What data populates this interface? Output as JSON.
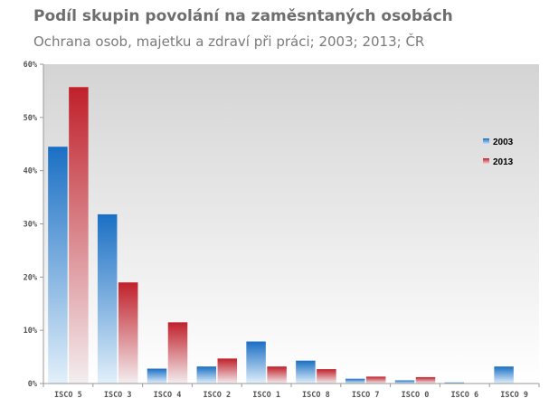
{
  "chart_data": {
    "type": "bar",
    "title": "Podíl skupin povolání na zaměsntaných osobách",
    "subtitle": "Ochrana osob, majetku a zdraví při práci; 2003; 2013; ČR",
    "categories": [
      "ISCO 5",
      "ISCO 3",
      "ISCO 4",
      "ISCO 2",
      "ISCO 1",
      "ISCO 8",
      "ISCO 7",
      "ISCO 0",
      "ISCO 6",
      "ISCO 9"
    ],
    "series": [
      {
        "name": "2003",
        "values": [
          44.5,
          31.8,
          2.8,
          3.2,
          7.9,
          4.3,
          0.9,
          0.6,
          0.2,
          3.2
        ]
      },
      {
        "name": "2013",
        "values": [
          55.7,
          19.0,
          11.5,
          4.7,
          3.2,
          2.7,
          1.3,
          1.2,
          0.0,
          0.0
        ]
      }
    ],
    "y_ticks": [
      "0%",
      "10%",
      "20%",
      "30%",
      "40%",
      "50%",
      "60%"
    ],
    "ylim": [
      0,
      60
    ],
    "grid": false,
    "legend_position": "right",
    "colors": {
      "2003": "#1a6fc4",
      "2013": "#c0202a"
    }
  }
}
